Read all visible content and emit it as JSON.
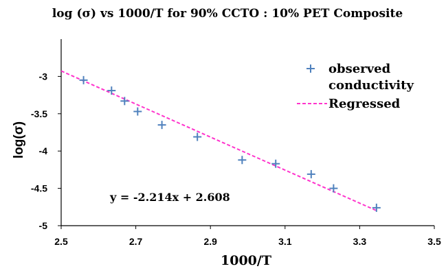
{
  "chart_data": {
    "type": "scatter",
    "title": "log (σ) vs 1000/T  for  90% CCTO  :  10%  PET  Composite",
    "xlabel": "1000/T",
    "ylabel": "log(σ)",
    "xlim": [
      2.5,
      3.5
    ],
    "ylim": [
      -5,
      -2.5
    ],
    "x_ticks": [
      2.5,
      2.7,
      2.9,
      3.1,
      3.3,
      3.5
    ],
    "x_tick_labels": [
      "2.5",
      "2.7",
      "2.9",
      "3.1",
      "3.3",
      "3.5"
    ],
    "y_ticks": [
      -3,
      -3.5,
      -4,
      -4.5,
      -5
    ],
    "y_tick_labels": [
      "-3",
      "-3.5",
      "-4",
      "-4.5",
      "-5"
    ],
    "grid": false,
    "legend_position": "top-right",
    "series": [
      {
        "name": "observed conductivity",
        "legend_lines": [
          "observed",
          "conductivity"
        ],
        "marker": "plus",
        "color": "#4F81BD",
        "x": [
          2.56,
          2.635,
          2.67,
          2.705,
          2.77,
          2.865,
          2.985,
          3.075,
          3.17,
          3.23,
          3.345
        ],
        "y": [
          -3.05,
          -3.19,
          -3.33,
          -3.47,
          -3.65,
          -3.81,
          -4.12,
          -4.17,
          -4.31,
          -4.5,
          -4.76
        ]
      },
      {
        "name": "Regressed",
        "type": "line",
        "style": "dashed",
        "color": "#FF33CC",
        "x": [
          2.5,
          3.345
        ],
        "y": [
          -2.927,
          -4.798
        ]
      }
    ],
    "annotations": [
      {
        "text": "y = -2.214x + 2.608"
      }
    ]
  }
}
